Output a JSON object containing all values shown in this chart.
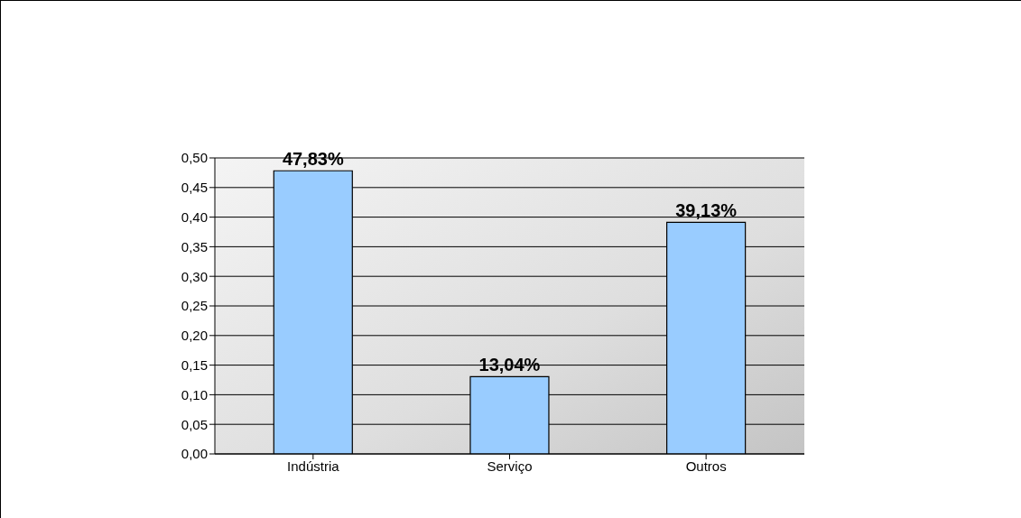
{
  "chart_data": {
    "type": "bar",
    "categories": [
      "Indústria",
      "Serviço",
      "Outros"
    ],
    "values": [
      0.4783,
      0.1304,
      0.3913
    ],
    "value_labels": [
      "47,83%",
      "13,04%",
      "39,13%"
    ],
    "color": "#99ccff",
    "ylim": [
      0,
      0.5
    ],
    "yticks": [
      {
        "value": 0,
        "label": "0,00"
      },
      {
        "value": 0.05,
        "label": "0,05"
      },
      {
        "value": 0.1,
        "label": "0,10"
      },
      {
        "value": 0.15,
        "label": "0,15"
      },
      {
        "value": 0.2,
        "label": "0,20"
      },
      {
        "value": 0.25,
        "label": "0,25"
      },
      {
        "value": 0.3,
        "label": "0,30"
      },
      {
        "value": 0.35,
        "label": "0,35"
      },
      {
        "value": 0.4,
        "label": "0,40"
      },
      {
        "value": 0.45,
        "label": "0,45"
      },
      {
        "value": 0.5,
        "label": "0,50"
      }
    ],
    "grid": "y"
  }
}
